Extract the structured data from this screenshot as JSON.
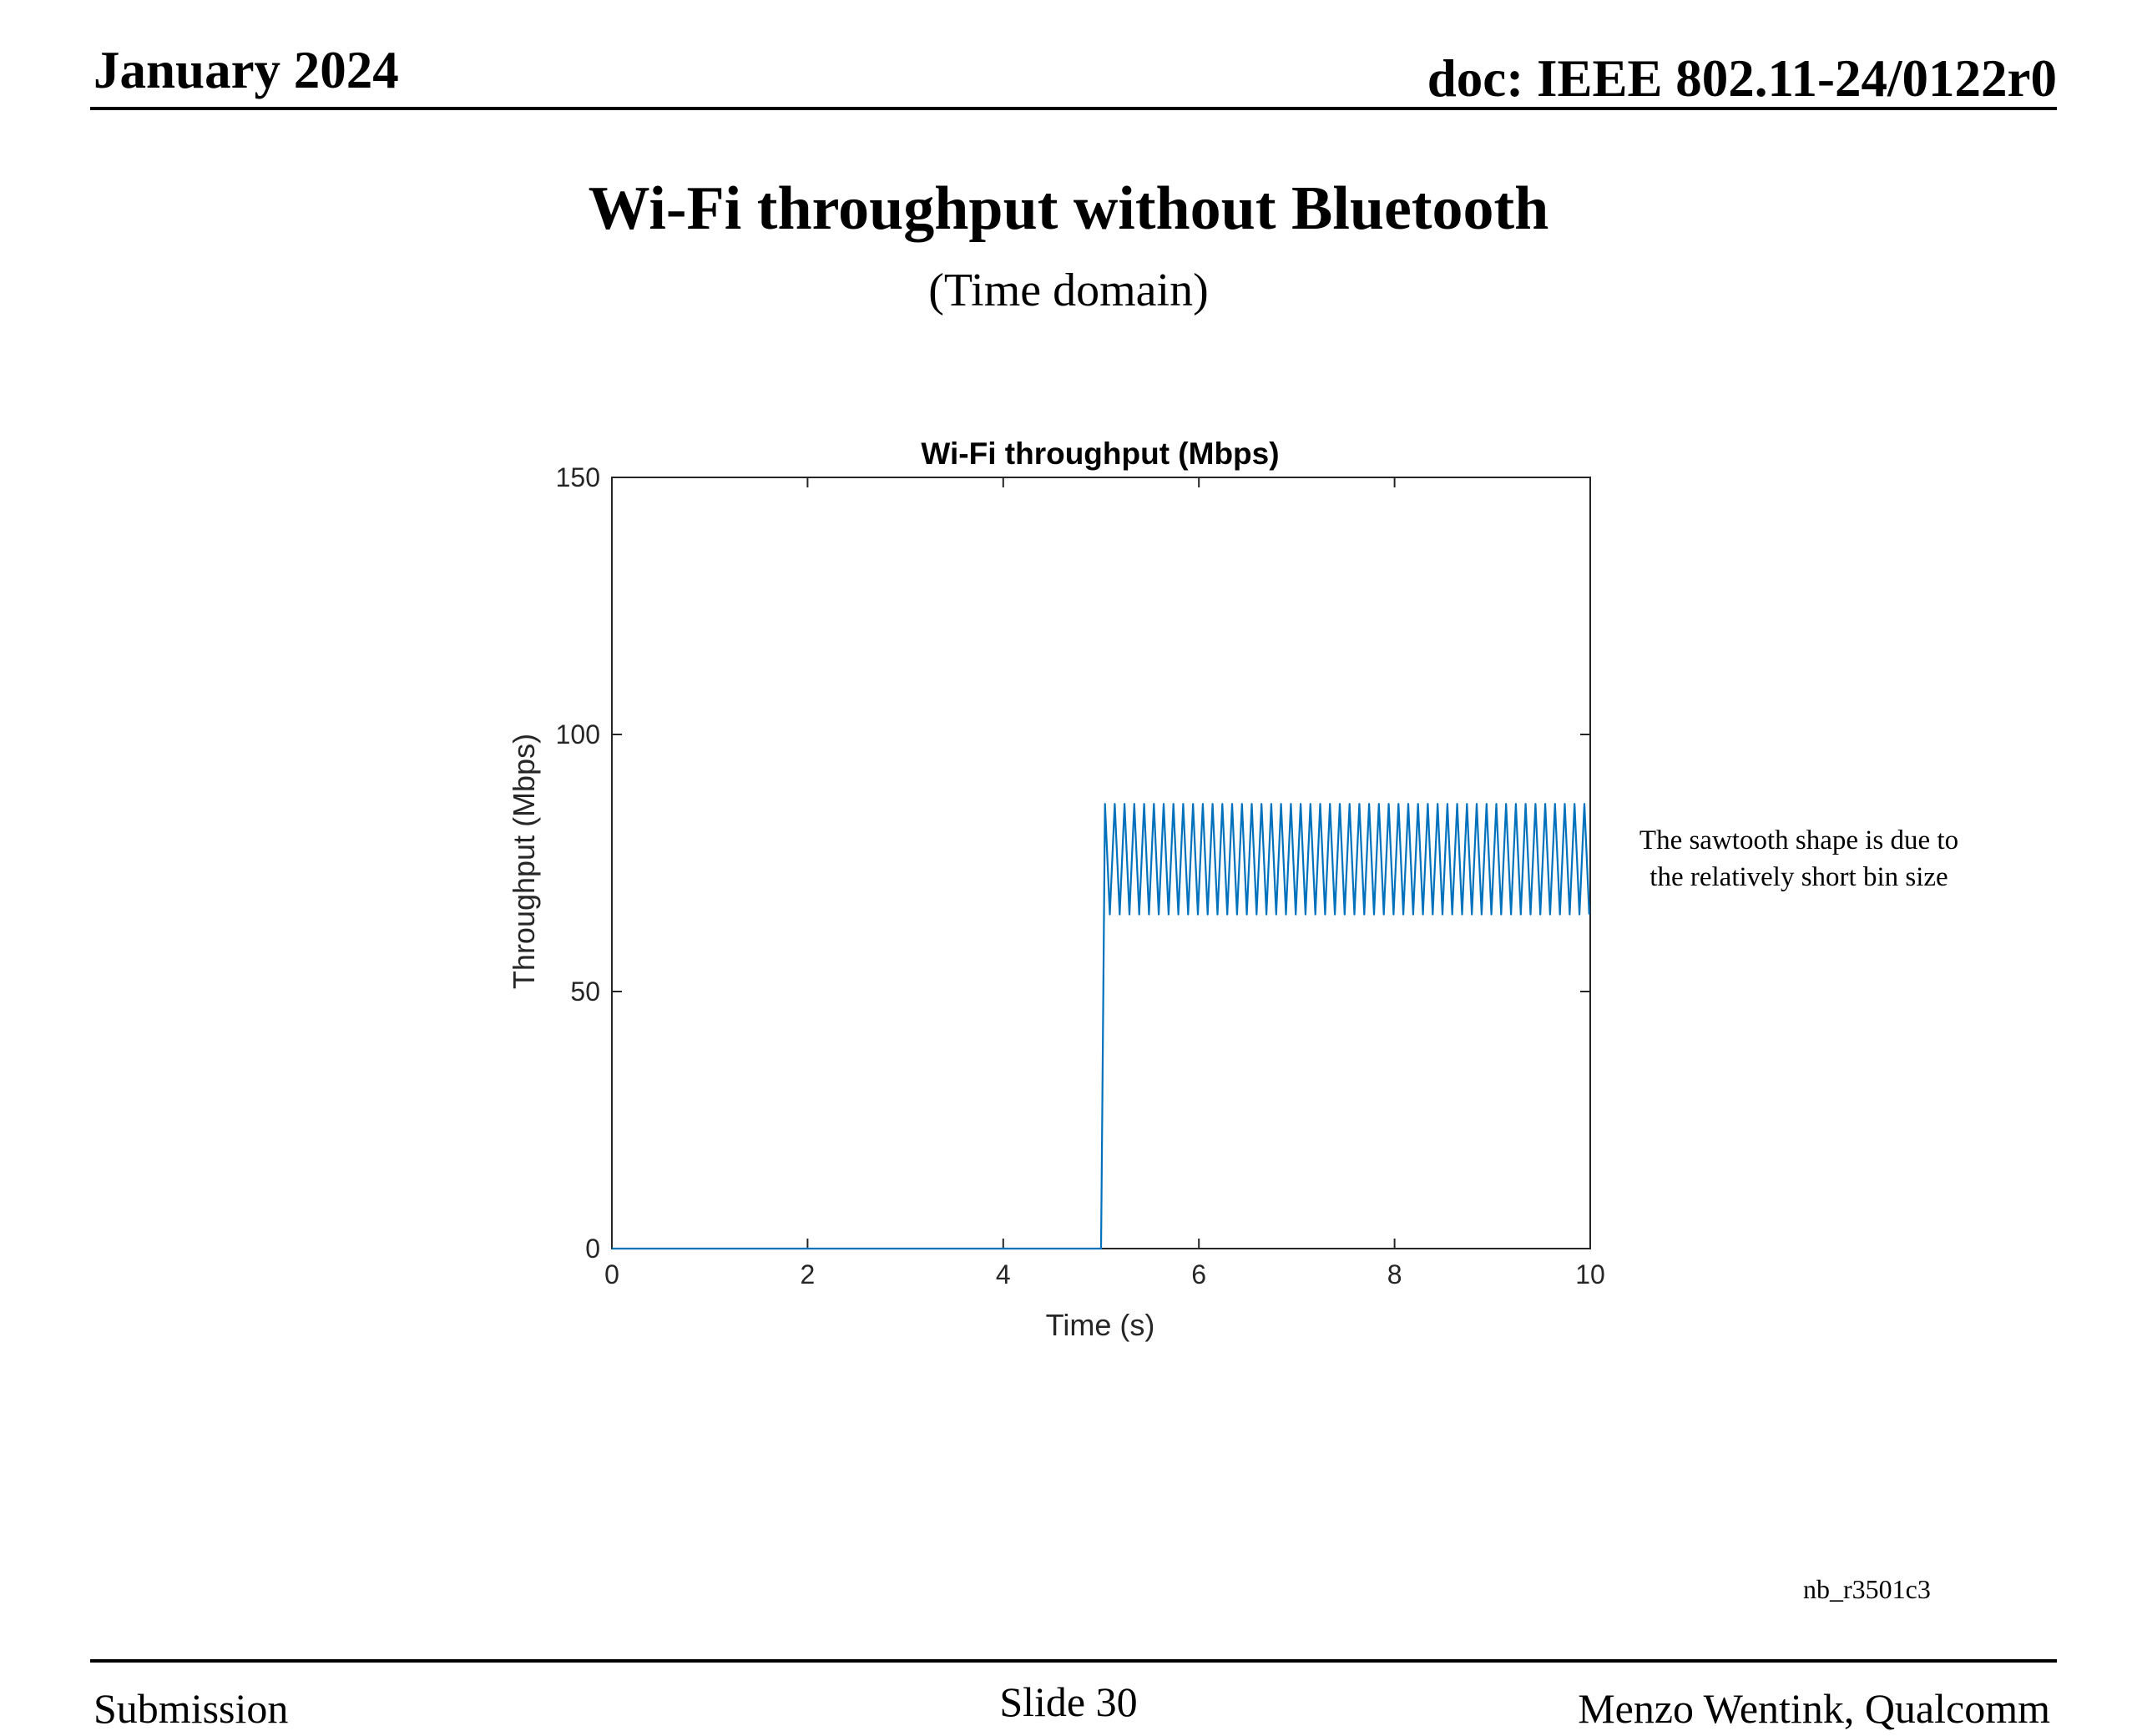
{
  "header": {
    "date": "January 2024",
    "doc": "doc: IEEE 802.11-24/0122r0"
  },
  "slide": {
    "title": "Wi-Fi throughput without Bluetooth",
    "subtitle": "(Time domain)",
    "annotation_line1": "The sawtooth shape is due to",
    "annotation_line2": "the relatively short bin size",
    "code": "nb_r3501c3"
  },
  "footer": {
    "left": "Submission",
    "center": "Slide 30",
    "right": "Menzo Wentink, Qualcomm"
  },
  "chart_data": {
    "type": "line",
    "title": "Wi-Fi throughput (Mbps)",
    "xlabel": "Time (s)",
    "ylabel": "Throughput (Mbps)",
    "xlim": [
      0,
      10
    ],
    "ylim": [
      0,
      150
    ],
    "xticks": [
      0,
      2,
      4,
      6,
      8,
      10
    ],
    "yticks": [
      0,
      50,
      100,
      150
    ],
    "color": "#0072BD",
    "grid": false,
    "series": [
      {
        "segments": [
          {
            "kind": "constant",
            "x_start": 0,
            "x_end": 5.0,
            "y": 0
          },
          {
            "kind": "step",
            "x_start": 5.0,
            "x_end": 5.04,
            "y_from": 0,
            "y_to": 86.5
          },
          {
            "kind": "sawtooth",
            "x_start": 5.04,
            "x_end": 10,
            "y_min": 65,
            "y_max": 86.5,
            "period": 0.1
          }
        ]
      }
    ]
  }
}
